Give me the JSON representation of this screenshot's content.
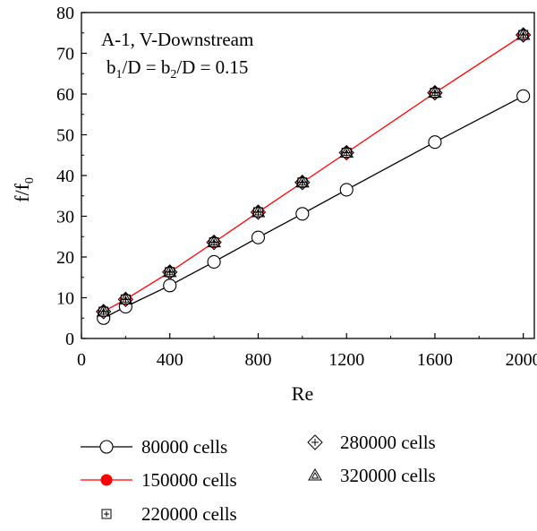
{
  "chart_data": {
    "type": "line",
    "title": "",
    "annotation": {
      "line1": "A-1, V-Downstream",
      "line2": {
        "b": "b",
        "sub1": "1",
        "mid": "/D = b",
        "sub2": "2",
        "end": "/D = 0.15"
      }
    },
    "xlabel": "Re",
    "ylabel": {
      "main": "f/f",
      "sub": "0"
    },
    "xlim": [
      0,
      2050
    ],
    "ylim": [
      0,
      80
    ],
    "xticks": [
      0,
      400,
      800,
      1200,
      1600,
      2000
    ],
    "yticks": [
      0,
      10,
      20,
      30,
      40,
      50,
      60,
      70,
      80
    ],
    "grid": false,
    "legend_position": "below plot",
    "x": [
      100,
      200,
      400,
      600,
      800,
      1000,
      1200,
      1600,
      2000
    ],
    "series": [
      {
        "name": "80000 cells",
        "marker": "open-circle",
        "line": true,
        "line_color": "#000000",
        "values": [
          5.0,
          7.8,
          13.0,
          18.8,
          24.8,
          30.6,
          36.5,
          48.2,
          59.5
        ]
      },
      {
        "name": "150000 cells",
        "marker": "filled-circle-red",
        "line": true,
        "line_color": "#ff0000",
        "values": [
          6.6,
          9.6,
          16.3,
          23.6,
          31.0,
          38.3,
          45.6,
          60.3,
          74.5
        ]
      },
      {
        "name": "220000 cells",
        "marker": "boxed-plus",
        "line": false,
        "line_color": "#000000",
        "values": [
          6.6,
          9.6,
          16.3,
          23.6,
          31.0,
          38.3,
          45.6,
          60.3,
          74.5
        ]
      },
      {
        "name": "280000 cells",
        "marker": "diamond-plus",
        "line": false,
        "line_color": "#000000",
        "values": [
          6.6,
          9.6,
          16.3,
          23.6,
          31.0,
          38.3,
          45.6,
          60.3,
          74.5
        ]
      },
      {
        "name": "320000 cells",
        "marker": "triangle-double",
        "line": false,
        "line_color": "#000000",
        "values": [
          6.6,
          9.6,
          16.3,
          23.6,
          31.0,
          38.3,
          45.6,
          60.3,
          74.5
        ]
      }
    ]
  }
}
